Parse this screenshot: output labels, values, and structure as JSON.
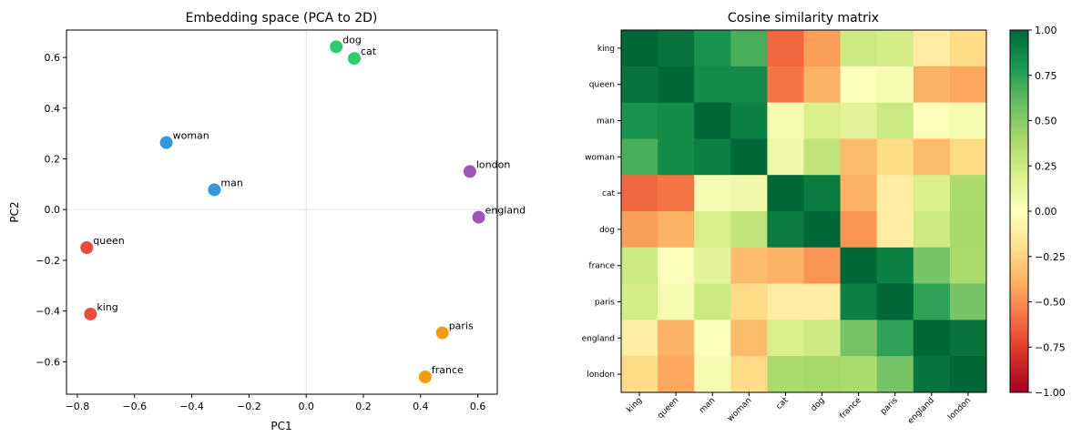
{
  "chart_data": [
    {
      "type": "scatter",
      "title": "Embedding space (PCA to 2D)",
      "xlabel": "PC1",
      "ylabel": "PC2",
      "xlim": [
        -0.838,
        0.668
      ],
      "ylim": [
        -0.728,
        0.708
      ],
      "xticks": [
        -0.8,
        -0.6,
        -0.4,
        -0.2,
        0.0,
        0.2,
        0.4,
        0.6
      ],
      "yticks": [
        -0.6,
        -0.4,
        -0.2,
        0.0,
        0.2,
        0.4,
        0.6
      ],
      "xtick_labels": [
        "−0.8",
        "−0.6",
        "−0.4",
        "−0.2",
        "0.0",
        "0.2",
        "0.4",
        "0.6"
      ],
      "ytick_labels": [
        "−0.6",
        "−0.4",
        "−0.2",
        "0.0",
        "0.2",
        "0.4",
        "0.6"
      ],
      "zero_lines": true,
      "points": [
        {
          "label": "king",
          "x": -0.754,
          "y": -0.412,
          "color": "#e74c3c"
        },
        {
          "label": "queen",
          "x": -0.767,
          "y": -0.15,
          "color": "#e74c3c"
        },
        {
          "label": "man",
          "x": -0.321,
          "y": 0.078,
          "color": "#3498db"
        },
        {
          "label": "woman",
          "x": -0.489,
          "y": 0.264,
          "color": "#3498db"
        },
        {
          "label": "cat",
          "x": 0.168,
          "y": 0.596,
          "color": "#2ecc71"
        },
        {
          "label": "dog",
          "x": 0.105,
          "y": 0.642,
          "color": "#2ecc71"
        },
        {
          "label": "france",
          "x": 0.416,
          "y": -0.66,
          "color": "#f39c12"
        },
        {
          "label": "paris",
          "x": 0.476,
          "y": -0.486,
          "color": "#f39c12"
        },
        {
          "label": "england",
          "x": 0.603,
          "y": -0.03,
          "color": "#9b59b6"
        },
        {
          "label": "london",
          "x": 0.572,
          "y": 0.15,
          "color": "#9b59b6"
        }
      ]
    },
    {
      "type": "heatmap",
      "title": "Cosine similarity matrix",
      "colormap": "RdYlGn",
      "vmin": -1.0,
      "vmax": 1.0,
      "colorbar_ticks": [
        1.0,
        0.75,
        0.5,
        0.25,
        0.0,
        -0.25,
        -0.5,
        -0.75,
        -1.0
      ],
      "colorbar_labels": [
        "1.00",
        "0.75",
        "0.50",
        "0.25",
        "0.00",
        "−0.25",
        "−0.50",
        "−0.75",
        "−1.00"
      ],
      "labels": [
        "king",
        "queen",
        "man",
        "woman",
        "cat",
        "dog",
        "france",
        "paris",
        "england",
        "london"
      ],
      "matrix": [
        [
          1.0,
          0.95,
          0.82,
          0.68,
          -0.62,
          -0.45,
          0.25,
          0.22,
          -0.12,
          -0.22
        ],
        [
          0.95,
          1.0,
          0.85,
          0.85,
          -0.58,
          -0.38,
          0.02,
          0.05,
          -0.38,
          -0.42
        ],
        [
          0.82,
          0.85,
          1.0,
          0.9,
          0.05,
          0.2,
          0.15,
          0.25,
          0.02,
          0.05
        ],
        [
          0.68,
          0.85,
          0.9,
          1.0,
          0.08,
          0.3,
          -0.35,
          -0.22,
          -0.35,
          -0.22
        ],
        [
          -0.62,
          -0.58,
          0.05,
          0.08,
          1.0,
          0.92,
          -0.38,
          -0.12,
          0.2,
          0.38
        ],
        [
          -0.45,
          -0.38,
          0.2,
          0.3,
          0.92,
          1.0,
          -0.48,
          -0.12,
          0.25,
          0.4
        ],
        [
          0.25,
          0.02,
          0.15,
          -0.35,
          -0.38,
          -0.48,
          1.0,
          0.9,
          0.55,
          0.38
        ],
        [
          0.22,
          0.05,
          0.25,
          -0.22,
          -0.12,
          -0.12,
          0.9,
          1.0,
          0.75,
          0.55
        ],
        [
          -0.12,
          -0.38,
          0.02,
          -0.35,
          0.2,
          0.25,
          0.55,
          0.75,
          1.0,
          0.95
        ],
        [
          -0.22,
          -0.42,
          0.05,
          -0.22,
          0.38,
          0.4,
          0.38,
          0.55,
          0.95,
          1.0
        ]
      ]
    }
  ]
}
